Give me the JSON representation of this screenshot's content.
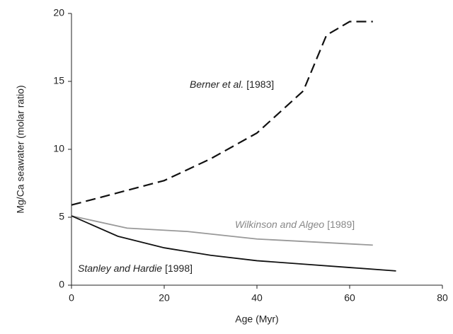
{
  "chart_data": {
    "type": "line",
    "xlabel": "Age (Myr)",
    "ylabel": "Mg/Ca seawater (molar ratio)",
    "xlim": [
      0,
      80
    ],
    "xticks": [
      0,
      20,
      40,
      60,
      80
    ],
    "ylim": [
      0,
      20
    ],
    "yticks": [
      0,
      5,
      10,
      15,
      20
    ],
    "series": [
      {
        "name": "Berner et al.",
        "ref": "[1983]",
        "color": "#111111",
        "dash": true,
        "x": [
          0,
          10,
          20,
          30,
          40,
          50,
          55,
          60,
          65
        ],
        "values": [
          5.9,
          6.8,
          7.7,
          9.3,
          11.2,
          14.3,
          18.4,
          19.4,
          19.4
        ]
      },
      {
        "name": "Wilkinson and Algeo",
        "ref": "[1989]",
        "color": "#999999",
        "dash": false,
        "x": [
          0,
          12,
          25,
          40,
          65
        ],
        "values": [
          5.1,
          4.2,
          3.95,
          3.4,
          2.95
        ]
      },
      {
        "name": "Stanley and Hardie",
        "ref": "[1998]",
        "color": "#111111",
        "dash": false,
        "x": [
          0,
          10,
          20,
          30,
          40,
          50,
          60,
          70
        ],
        "values": [
          5.1,
          3.6,
          2.75,
          2.2,
          1.8,
          1.55,
          1.3,
          1.05
        ]
      }
    ]
  }
}
